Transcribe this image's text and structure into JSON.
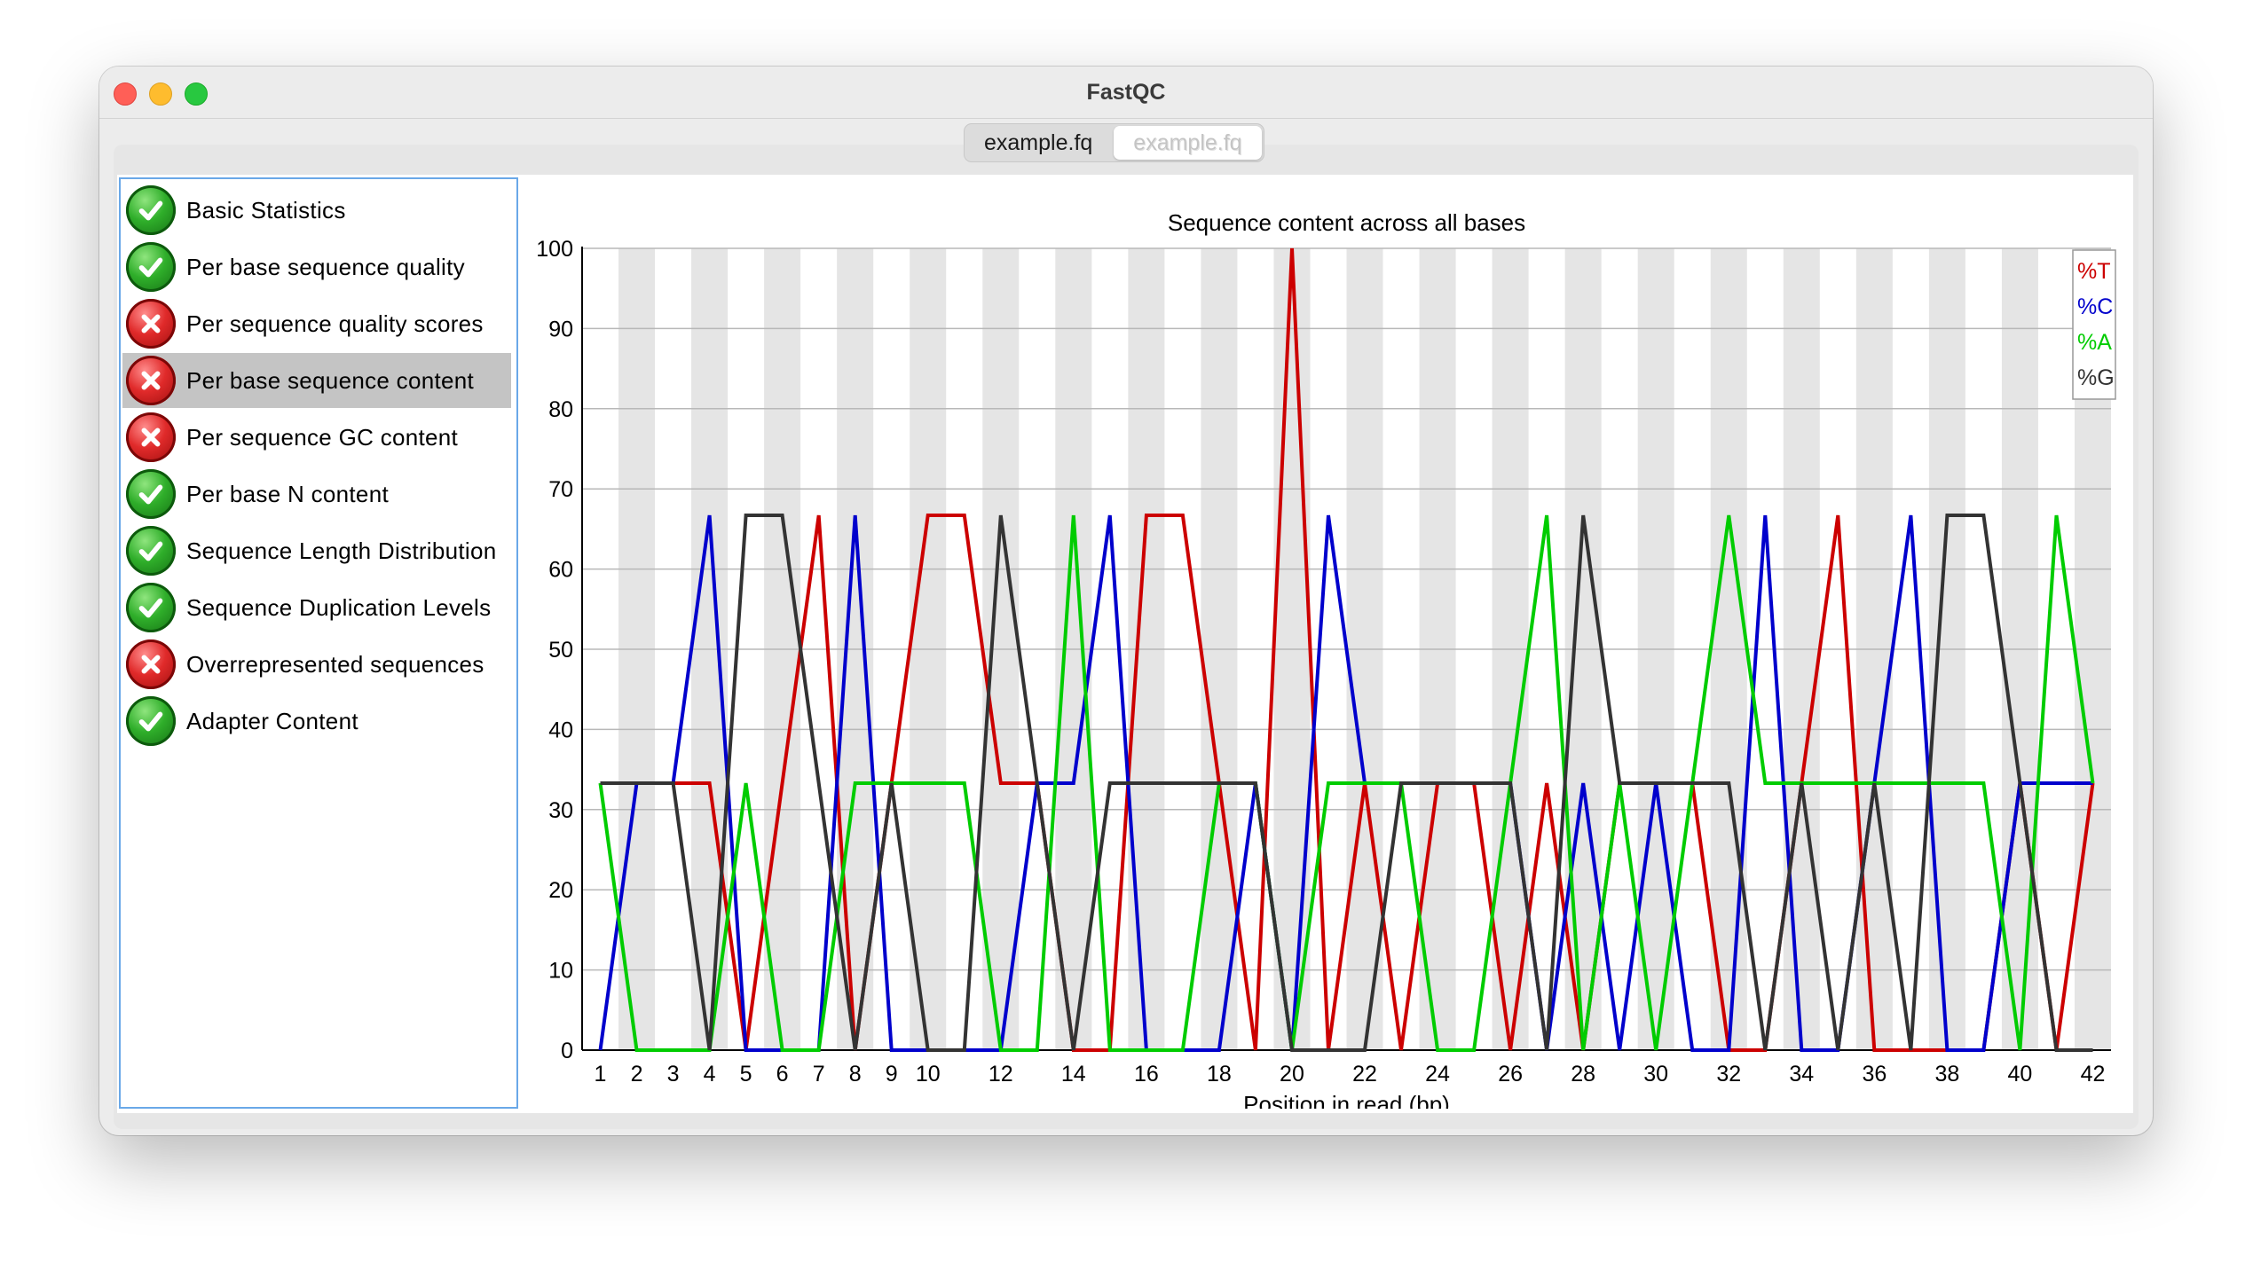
{
  "window": {
    "title": "FastQC",
    "tabs": [
      {
        "label": "example.fq",
        "active": true
      },
      {
        "label": "example.fq",
        "active": false
      }
    ]
  },
  "modules": [
    {
      "label": "Basic Statistics",
      "status": "pass",
      "icon": "check-icon"
    },
    {
      "label": "Per base sequence quality",
      "status": "pass",
      "icon": "check-icon"
    },
    {
      "label": "Per sequence quality scores",
      "status": "fail",
      "icon": "cross-icon"
    },
    {
      "label": "Per base sequence content",
      "status": "fail",
      "icon": "cross-icon",
      "selected": true
    },
    {
      "label": "Per sequence GC content",
      "status": "fail",
      "icon": "cross-icon"
    },
    {
      "label": "Per base N content",
      "status": "pass",
      "icon": "check-icon"
    },
    {
      "label": "Sequence Length Distribution",
      "status": "pass",
      "icon": "check-icon"
    },
    {
      "label": "Sequence Duplication Levels",
      "status": "pass",
      "icon": "check-icon"
    },
    {
      "label": "Overrepresented sequences",
      "status": "fail",
      "icon": "cross-icon"
    },
    {
      "label": "Adapter Content",
      "status": "pass",
      "icon": "check-icon"
    }
  ],
  "colors": {
    "T": "#cc0000",
    "C": "#0000cc",
    "A": "#00cc00",
    "G": "#333333",
    "pass": "#2fae2a",
    "fail": "#e02a2a",
    "selection": "#c4c4c4",
    "sidebar_border": "#6aa8e8"
  },
  "chart_data": {
    "type": "line",
    "title": "Sequence content across all bases",
    "xlabel": "Position in read (bp)",
    "ylabel": "",
    "ylim": [
      0,
      100
    ],
    "yticks": [
      0,
      10,
      20,
      30,
      40,
      50,
      60,
      70,
      80,
      90,
      100
    ],
    "x": [
      1,
      2,
      3,
      4,
      5,
      6,
      7,
      8,
      9,
      10,
      11,
      12,
      13,
      14,
      15,
      16,
      17,
      18,
      19,
      20,
      21,
      22,
      23,
      24,
      25,
      26,
      27,
      28,
      29,
      30,
      31,
      32,
      33,
      34,
      35,
      36,
      37,
      38,
      39,
      40,
      41,
      42
    ],
    "xtick_labels": [
      "1",
      "2",
      "3",
      "4",
      "5",
      "6",
      "7",
      "8",
      "9",
      "10",
      "12",
      "14",
      "16",
      "18",
      "20",
      "22",
      "24",
      "26",
      "28",
      "30",
      "32",
      "34",
      "36",
      "38",
      "40",
      "42"
    ],
    "grid": "horizontal",
    "alternating_column_bands": true,
    "legend": "top-right",
    "series": [
      {
        "name": "%T",
        "color": "#cc0000",
        "values": [
          33.3,
          33.3,
          33.3,
          33.3,
          0,
          33.3,
          66.7,
          0,
          33.3,
          66.7,
          66.7,
          33.3,
          33.3,
          0,
          0,
          66.7,
          66.7,
          33.3,
          0,
          100,
          0,
          33.3,
          0,
          33.3,
          33.3,
          0,
          33.3,
          0,
          33.3,
          33.3,
          33.3,
          0,
          0,
          33.3,
          66.7,
          0,
          0,
          0,
          0,
          33.3,
          0,
          33.3
        ]
      },
      {
        "name": "%C",
        "color": "#0000cc",
        "values": [
          0,
          33.3,
          33.3,
          66.7,
          0,
          0,
          0,
          66.7,
          0,
          0,
          0,
          0,
          33.3,
          33.3,
          66.7,
          0,
          0,
          0,
          33.3,
          0,
          66.7,
          33.3,
          33.3,
          33.3,
          33.3,
          33.3,
          0,
          33.3,
          0,
          33.3,
          0,
          0,
          66.7,
          0,
          0,
          33.3,
          66.7,
          0,
          0,
          33.3,
          33.3,
          33.3
        ]
      },
      {
        "name": "%A",
        "color": "#00cc00",
        "values": [
          33.3,
          0,
          0,
          0,
          33.3,
          0,
          0,
          33.3,
          33.3,
          33.3,
          33.3,
          0,
          0,
          66.7,
          0,
          0,
          0,
          33.3,
          33.3,
          0,
          33.3,
          33.3,
          33.3,
          0,
          0,
          33.3,
          66.7,
          0,
          33.3,
          0,
          33.3,
          66.7,
          33.3,
          33.3,
          33.3,
          33.3,
          33.3,
          33.3,
          33.3,
          0,
          66.7,
          33.3
        ]
      },
      {
        "name": "%G",
        "color": "#333333",
        "values": [
          33.3,
          33.3,
          33.3,
          0,
          66.7,
          66.7,
          33.3,
          0,
          33.3,
          0,
          0,
          66.7,
          33.3,
          0,
          33.3,
          33.3,
          33.3,
          33.3,
          33.3,
          0,
          0,
          0,
          33.3,
          33.3,
          33.3,
          33.3,
          0,
          66.7,
          33.3,
          33.3,
          33.3,
          33.3,
          0,
          33.3,
          0,
          33.3,
          0,
          66.7,
          66.7,
          33.3,
          0,
          0
        ]
      }
    ]
  }
}
